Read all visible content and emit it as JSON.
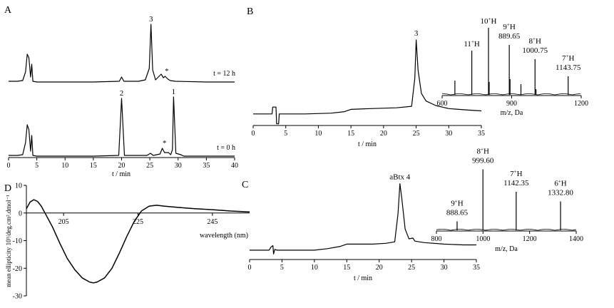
{
  "chart_data": [
    {
      "panel": "A",
      "type": "line",
      "xlabel": "t / min",
      "xlim": [
        0,
        40
      ],
      "xticks": [
        0,
        5,
        10,
        15,
        20,
        25,
        30,
        35,
        40
      ],
      "traces": [
        {
          "name": "t = 12 h",
          "points": [
            [
              0,
              0.02
            ],
            [
              1.5,
              0.02
            ],
            [
              2.5,
              0.03
            ],
            [
              3.0,
              0.15
            ],
            [
              3.3,
              0.4
            ],
            [
              3.6,
              0.35
            ],
            [
              3.9,
              0.08
            ],
            [
              4.1,
              0.26
            ],
            [
              4.3,
              0.02
            ],
            [
              5,
              0.01
            ],
            [
              10,
              0.01
            ],
            [
              15,
              0.01
            ],
            [
              19.6,
              0.02
            ],
            [
              20,
              0.08
            ],
            [
              20.4,
              0.02
            ],
            [
              23,
              0.02
            ],
            [
              24.2,
              0.04
            ],
            [
              24.9,
              0.2
            ],
            [
              25.2,
              0.82
            ],
            [
              25.5,
              0.18
            ],
            [
              26,
              0.04
            ],
            [
              27,
              0.12
            ],
            [
              27.4,
              0.07
            ],
            [
              27.7,
              0.09
            ],
            [
              28.2,
              0.05
            ],
            [
              28.6,
              0.03
            ],
            [
              29.5,
              0.02
            ],
            [
              35,
              0.01
            ],
            [
              40,
              0.01
            ]
          ],
          "peaks": [
            {
              "label": "3",
              "x": 25.2
            },
            {
              "label": "*",
              "x": 28.0
            }
          ]
        },
        {
          "name": "t = 0 h",
          "points": [
            [
              0,
              0.02
            ],
            [
              1.5,
              0.02
            ],
            [
              2.5,
              0.03
            ],
            [
              3.0,
              0.2
            ],
            [
              3.3,
              0.45
            ],
            [
              3.6,
              0.38
            ],
            [
              3.9,
              0.08
            ],
            [
              4.1,
              0.3
            ],
            [
              4.3,
              0.02
            ],
            [
              5,
              0.01
            ],
            [
              15,
              0.01
            ],
            [
              19.5,
              0.02
            ],
            [
              20,
              0.82
            ],
            [
              20.5,
              0.02
            ],
            [
              24.5,
              0.02
            ],
            [
              25.1,
              0.05
            ],
            [
              25.6,
              0.02
            ],
            [
              26.8,
              0.04
            ],
            [
              27.2,
              0.12
            ],
            [
              27.6,
              0.06
            ],
            [
              28.3,
              0.06
            ],
            [
              28.7,
              0.03
            ],
            [
              29.0,
              0.1
            ],
            [
              29.2,
              0.84
            ],
            [
              29.6,
              0.05
            ],
            [
              30.5,
              0.03
            ],
            [
              31,
              0.01
            ],
            [
              40,
              0.01
            ]
          ],
          "peaks": [
            {
              "label": "2",
              "x": 20.0
            },
            {
              "label": "1",
              "x": 29.2
            },
            {
              "label": "*",
              "x": 27.6
            }
          ]
        }
      ]
    },
    {
      "panel": "B",
      "type": "line",
      "xlabel": "t / min",
      "xlim": [
        0,
        35
      ],
      "xticks": [
        0,
        5,
        10,
        15,
        20,
        25,
        30,
        35
      ],
      "trace": {
        "points": [
          [
            0,
            0.03
          ],
          [
            2.9,
            0.03
          ],
          [
            3.0,
            0.12
          ],
          [
            3.5,
            0.12
          ],
          [
            3.6,
            -0.1
          ],
          [
            3.9,
            -0.1
          ],
          [
            4.0,
            0.03
          ],
          [
            8,
            0.03
          ],
          [
            12,
            0.04
          ],
          [
            14,
            0.06
          ],
          [
            15,
            0.09
          ],
          [
            18,
            0.1
          ],
          [
            22,
            0.11
          ],
          [
            24.3,
            0.13
          ],
          [
            24.8,
            0.5
          ],
          [
            25.0,
            1.0
          ],
          [
            25.3,
            0.6
          ],
          [
            25.8,
            0.3
          ],
          [
            26.5,
            0.2
          ],
          [
            28,
            0.14
          ],
          [
            30,
            0.1
          ],
          [
            33,
            0.08
          ],
          [
            35,
            0.07
          ]
        ],
        "peaks": [
          {
            "label": "3",
            "x": 25.0
          }
        ]
      },
      "inset": {
        "xlabel": "m/z, Da",
        "xlim": [
          600,
          1200
        ],
        "xticks": [
          600,
          900,
          1200
        ],
        "peaks": [
          {
            "mz": 655,
            "h": 0.2
          },
          {
            "mz": 728,
            "h": 0.62,
            "ion": "11",
            "mass": ""
          },
          {
            "mz": 800,
            "h": 0.94,
            "ion": "10",
            "mass": ""
          },
          {
            "mz": 803,
            "h": 0.18
          },
          {
            "mz": 889.65,
            "h": 0.7,
            "ion": "9",
            "mass": "889.65"
          },
          {
            "mz": 893,
            "h": 0.22
          },
          {
            "mz": 940,
            "h": 0.15
          },
          {
            "mz": 1000.75,
            "h": 0.5,
            "ion": "8",
            "mass": "1000.75"
          },
          {
            "mz": 1005,
            "h": 0.08
          },
          {
            "mz": 1143.75,
            "h": 0.26,
            "ion": "7",
            "mass": "1143.75"
          }
        ]
      }
    },
    {
      "panel": "C",
      "type": "line",
      "xlabel": "t / min",
      "xlim": [
        0,
        35
      ],
      "xticks": [
        0,
        5,
        10,
        15,
        20,
        25,
        30,
        35
      ],
      "trace": {
        "points": [
          [
            0,
            0.02
          ],
          [
            3.0,
            0.02
          ],
          [
            3.3,
            0.06
          ],
          [
            3.6,
            0.08
          ],
          [
            3.7,
            -0.03
          ],
          [
            3.9,
            0.03
          ],
          [
            4.2,
            0.02
          ],
          [
            10,
            0.02
          ],
          [
            12,
            0.04
          ],
          [
            14,
            0.07
          ],
          [
            15,
            0.1
          ],
          [
            19,
            0.1
          ],
          [
            21,
            0.11
          ],
          [
            22.4,
            0.13
          ],
          [
            22.9,
            0.5
          ],
          [
            23.2,
            0.9
          ],
          [
            23.5,
            0.7
          ],
          [
            24.0,
            0.3
          ],
          [
            24.6,
            0.17
          ],
          [
            25.2,
            0.18
          ],
          [
            25.5,
            0.14
          ],
          [
            27,
            0.12
          ],
          [
            30,
            0.1
          ],
          [
            33,
            0.09
          ],
          [
            35,
            0.09
          ]
        ],
        "peaks": [
          {
            "label": "aBtx 4",
            "x": 23.2
          }
        ]
      },
      "inset": {
        "xlabel": "m/z, Da",
        "xlim": [
          800,
          1400
        ],
        "xticks": [
          800,
          1000,
          1200,
          1400
        ],
        "peaks": [
          {
            "mz": 888.65,
            "h": 0.14,
            "ion": "9",
            "mass": "888.65"
          },
          {
            "mz": 999.6,
            "h": 0.95,
            "ion": "8",
            "mass": "999.60"
          },
          {
            "mz": 1142.35,
            "h": 0.6,
            "ion": "7",
            "mass": "1142.35"
          },
          {
            "mz": 1332.8,
            "h": 0.45,
            "ion": "6",
            "mass": "1332.80"
          }
        ]
      }
    },
    {
      "panel": "D",
      "type": "line",
      "xlabel": "wavelength (nm)",
      "ylabel": "mean ellipticity 10³/deg.cm².dmol⁻¹",
      "xlim": [
        195,
        255
      ],
      "ylim": [
        -30,
        10
      ],
      "xticks": [
        205,
        225,
        245
      ],
      "yticks": [
        10,
        0,
        -10,
        -20,
        -30
      ],
      "points": [
        [
          195,
          1.5
        ],
        [
          196,
          4
        ],
        [
          197,
          4.8
        ],
        [
          198,
          4.2
        ],
        [
          199,
          2.5
        ],
        [
          200,
          0
        ],
        [
          202,
          -5
        ],
        [
          204,
          -11
        ],
        [
          206,
          -16.5
        ],
        [
          208,
          -20.5
        ],
        [
          210,
          -23.5
        ],
        [
          212,
          -25
        ],
        [
          213,
          -25.3
        ],
        [
          214,
          -25
        ],
        [
          216,
          -23.5
        ],
        [
          218,
          -20
        ],
        [
          220,
          -14.5
        ],
        [
          222,
          -8.5
        ],
        [
          224,
          -3
        ],
        [
          226,
          0.8
        ],
        [
          228,
          2.5
        ],
        [
          230,
          2.8
        ],
        [
          232,
          2.5
        ],
        [
          236,
          2
        ],
        [
          240,
          1.6
        ],
        [
          245,
          1.2
        ],
        [
          250,
          0.7
        ],
        [
          255,
          0.4
        ]
      ]
    }
  ],
  "labels": {
    "panel_a": "A",
    "panel_b": "B",
    "panel_c": "C",
    "panel_d": "D",
    "a_trace1": "t = 12 h",
    "a_trace2": "t = 0 h"
  },
  "colors": {
    "ink": "#000000",
    "background": "#ffffff"
  }
}
